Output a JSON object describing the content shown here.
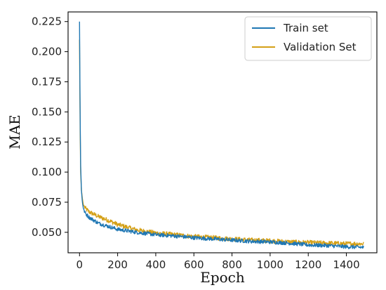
{
  "chart_data": {
    "type": "line",
    "xlabel": "Epoch",
    "ylabel": "MAE",
    "xlim": [
      -60,
      1560
    ],
    "ylim": [
      0.033,
      0.233
    ],
    "xticks": [
      "0",
      "200",
      "400",
      "600",
      "800",
      "1000",
      "1200",
      "1400"
    ],
    "yticks": [
      "0.050",
      "0.075",
      "0.100",
      "0.125",
      "0.150",
      "0.175",
      "0.200",
      "0.225"
    ],
    "grid": false,
    "legend_position": "top-right",
    "x_range": [
      0,
      1500
    ],
    "series": [
      {
        "name": "Train set",
        "color": "#1f77b4",
        "points": [
          [
            0,
            0.225
          ],
          [
            3,
            0.15
          ],
          [
            6,
            0.105
          ],
          [
            10,
            0.085
          ],
          [
            15,
            0.075
          ],
          [
            20,
            0.07
          ],
          [
            30,
            0.066
          ],
          [
            50,
            0.0625
          ],
          [
            75,
            0.06
          ],
          [
            100,
            0.0575
          ],
          [
            150,
            0.055
          ],
          [
            200,
            0.0525
          ],
          [
            300,
            0.05
          ],
          [
            400,
            0.048
          ],
          [
            500,
            0.047
          ],
          [
            600,
            0.0455
          ],
          [
            700,
            0.0445
          ],
          [
            800,
            0.0435
          ],
          [
            900,
            0.0425
          ],
          [
            1000,
            0.042
          ],
          [
            1100,
            0.041
          ],
          [
            1200,
            0.0395
          ],
          [
            1300,
            0.039
          ],
          [
            1400,
            0.038
          ],
          [
            1490,
            0.0375
          ]
        ]
      },
      {
        "name": "Validation Set",
        "color": "#d4a017",
        "points": [
          [
            0,
            0.21
          ],
          [
            3,
            0.14
          ],
          [
            6,
            0.1
          ],
          [
            10,
            0.085
          ],
          [
            15,
            0.078
          ],
          [
            20,
            0.073
          ],
          [
            30,
            0.07
          ],
          [
            50,
            0.067
          ],
          [
            75,
            0.065
          ],
          [
            100,
            0.063
          ],
          [
            150,
            0.06
          ],
          [
            200,
            0.0565
          ],
          [
            300,
            0.052
          ],
          [
            400,
            0.0495
          ],
          [
            500,
            0.048
          ],
          [
            600,
            0.0465
          ],
          [
            700,
            0.0455
          ],
          [
            800,
            0.0445
          ],
          [
            900,
            0.0435
          ],
          [
            1000,
            0.043
          ],
          [
            1100,
            0.042
          ],
          [
            1200,
            0.0415
          ],
          [
            1300,
            0.041
          ],
          [
            1400,
            0.0405
          ],
          [
            1490,
            0.0405
          ]
        ]
      }
    ]
  }
}
